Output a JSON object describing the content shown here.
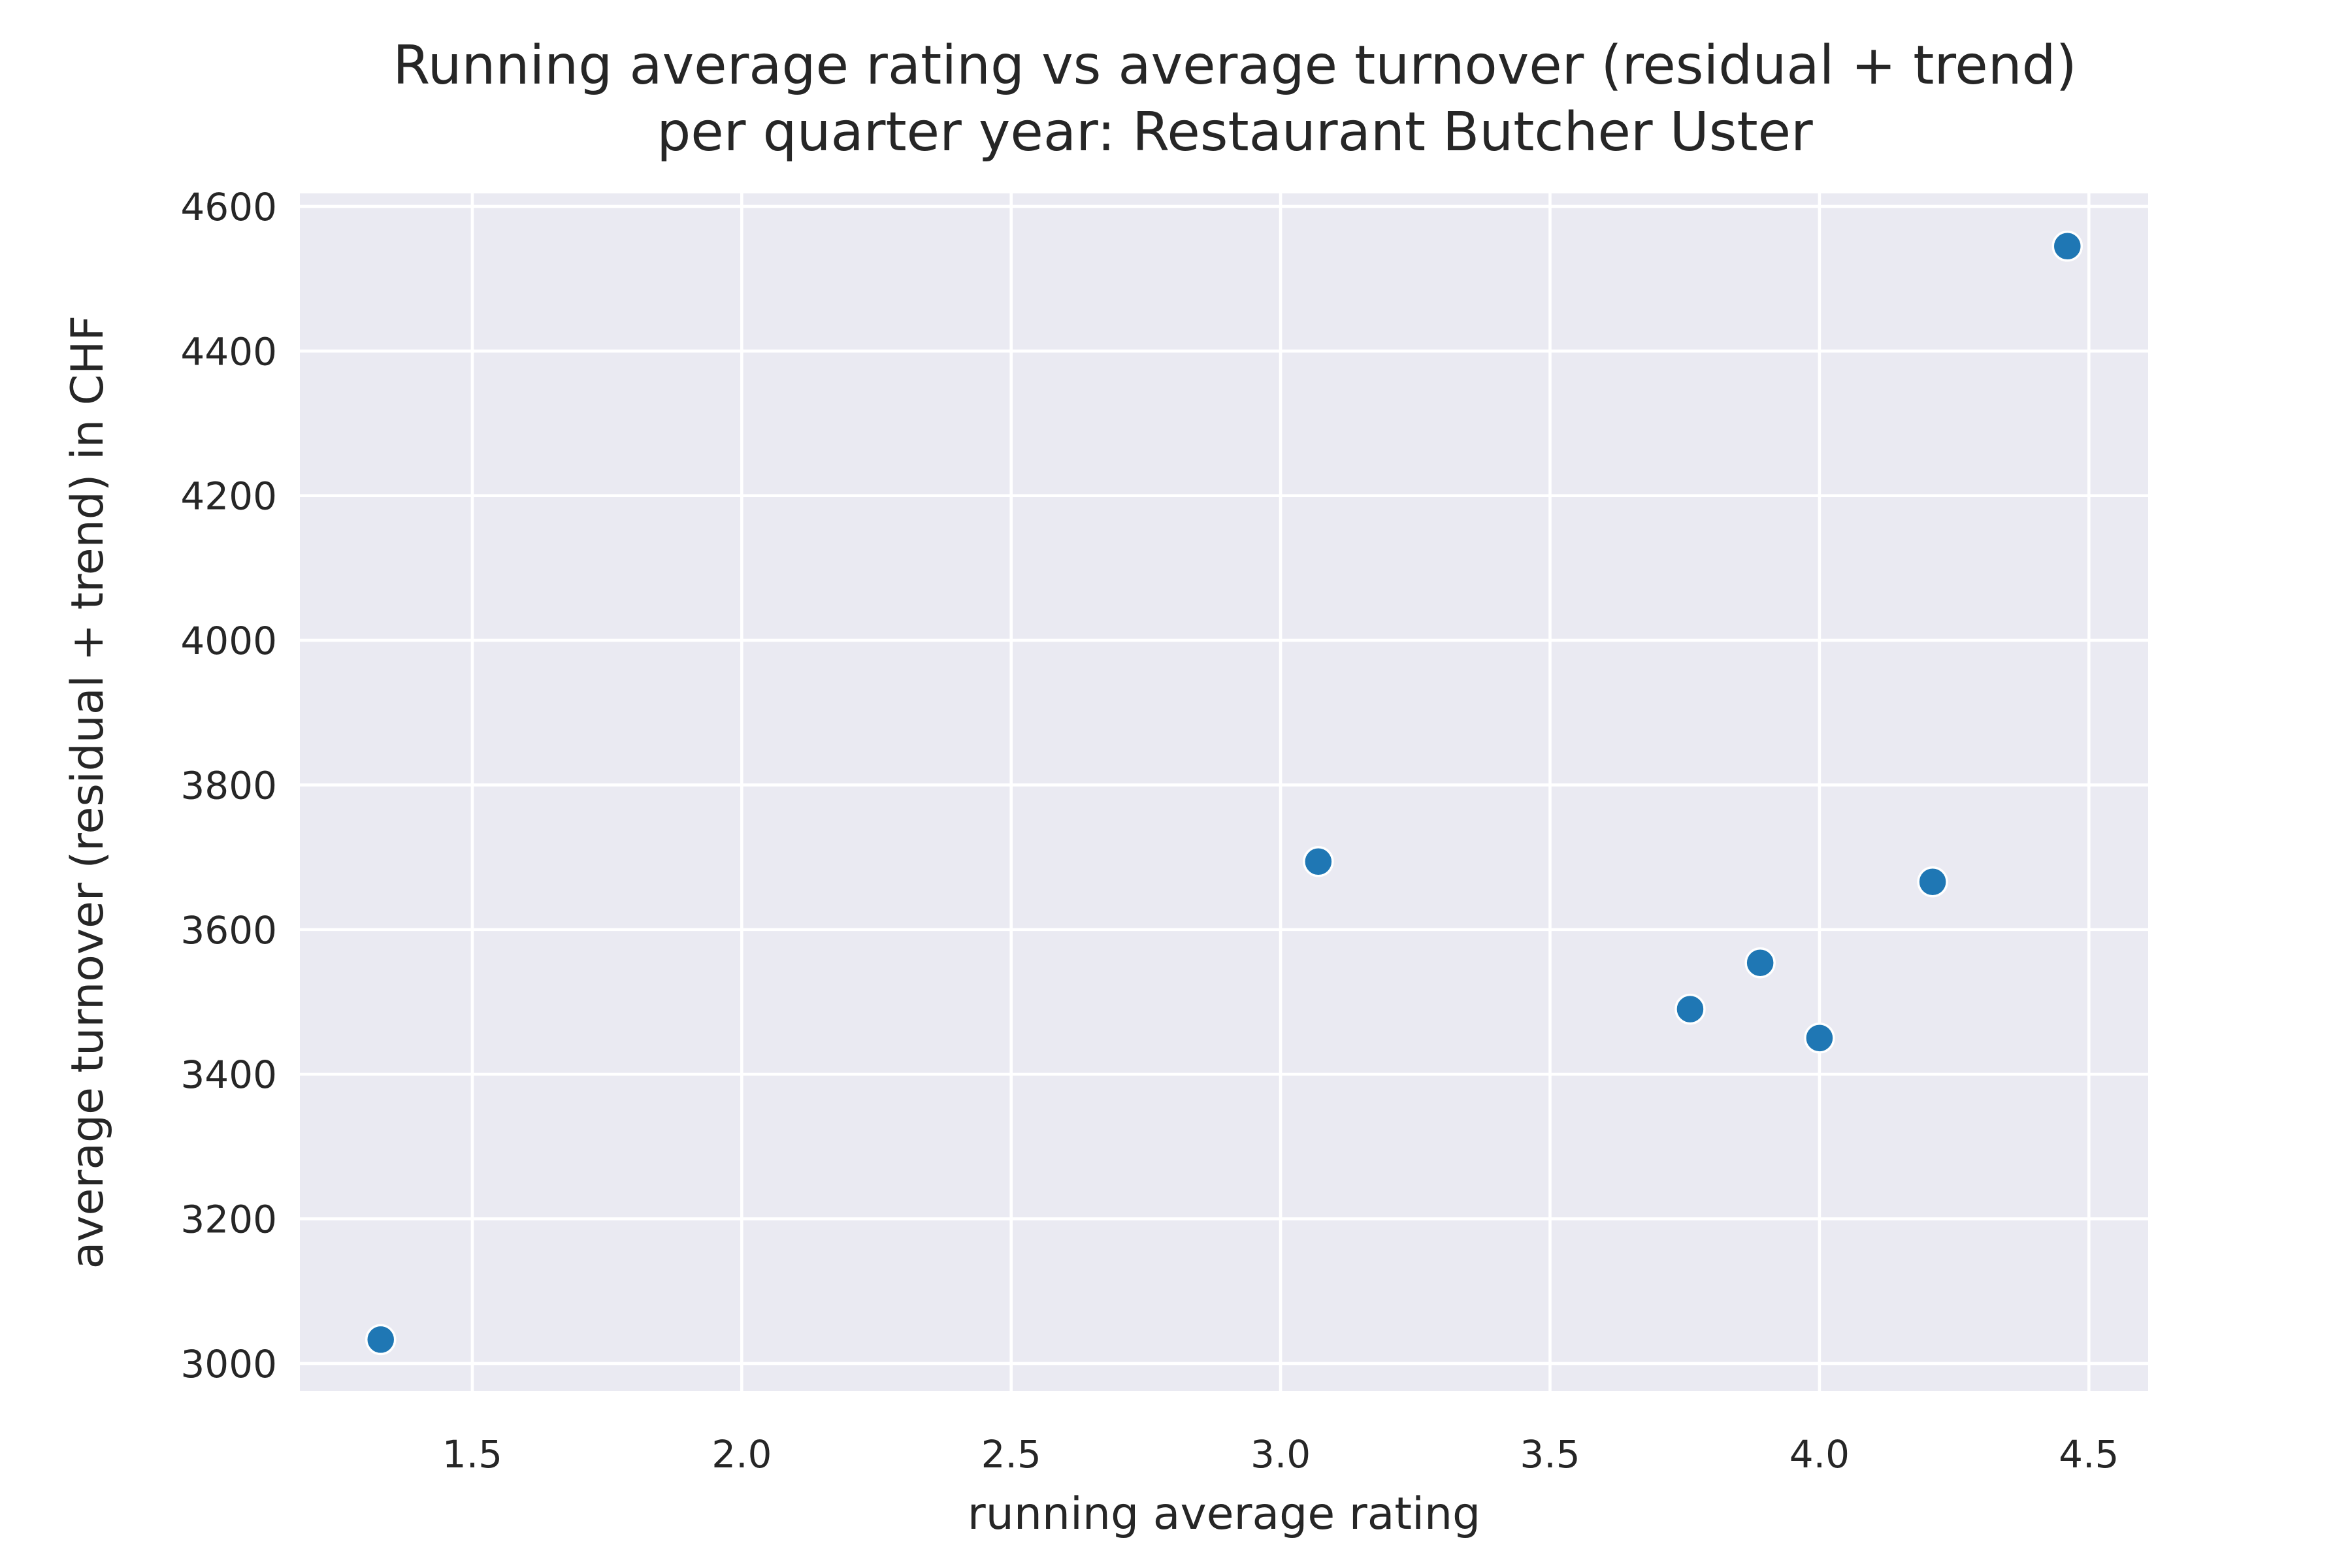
{
  "chart_data": {
    "type": "scatter",
    "title": "Running average rating vs average turnover (residual + trend)",
    "subtitle": "per quarter year: Restaurant Butcher Uster",
    "xlabel": "running average rating",
    "ylabel": "average turnover (residual + trend) in CHF",
    "xlim": [
      1.18,
      4.61
    ],
    "ylim": [
      2962,
      4618
    ],
    "x_ticks": [
      1.5,
      2.0,
      2.5,
      3.0,
      3.5,
      4.0,
      4.5
    ],
    "x_tick_labels": [
      "1.5",
      "2.0",
      "2.5",
      "3.0",
      "3.5",
      "4.0",
      "4.5"
    ],
    "y_ticks": [
      3000,
      3200,
      3400,
      3600,
      3800,
      4000,
      4200,
      4400,
      4600
    ],
    "y_tick_labels": [
      "3000",
      "3200",
      "3400",
      "3600",
      "3800",
      "4000",
      "4200",
      "4400",
      "4600"
    ],
    "grid": true,
    "background": "#eaeaf2",
    "grid_color": "#ffffff",
    "point_color": "#1f77b4",
    "points": [
      {
        "x": 1.33,
        "y": 3033
      },
      {
        "x": 3.07,
        "y": 3694
      },
      {
        "x": 3.76,
        "y": 3490
      },
      {
        "x": 3.89,
        "y": 3554
      },
      {
        "x": 4.0,
        "y": 3450
      },
      {
        "x": 4.21,
        "y": 3666
      },
      {
        "x": 4.46,
        "y": 4545
      }
    ]
  }
}
